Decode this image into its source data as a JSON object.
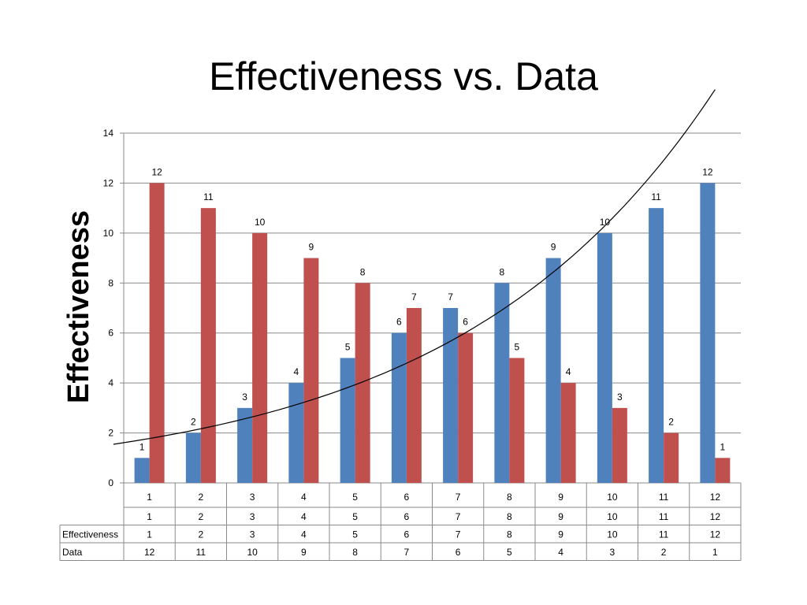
{
  "slide": {
    "title": "Effectiveness vs. Data"
  },
  "chart_data": {
    "type": "bar",
    "title": "Effectiveness vs. Data",
    "ylabel": "Effectiveness",
    "xlabel": "",
    "ylim": [
      0,
      14
    ],
    "yticks": [
      0,
      2,
      4,
      6,
      8,
      10,
      12,
      14
    ],
    "grid": true,
    "categories": [
      "1",
      "2",
      "3",
      "4",
      "5",
      "6",
      "7",
      "8",
      "9",
      "10",
      "11",
      "12"
    ],
    "header_row": [
      "1",
      "2",
      "3",
      "4",
      "5",
      "6",
      "7",
      "8",
      "9",
      "10",
      "11",
      "12"
    ],
    "series": [
      {
        "name": "Effectiveness",
        "color": "#4F81BD",
        "values": [
          1,
          2,
          3,
          4,
          5,
          6,
          7,
          8,
          9,
          10,
          11,
          12
        ]
      },
      {
        "name": "Data",
        "color": "#C0504D",
        "values": [
          12,
          11,
          10,
          9,
          8,
          7,
          6,
          5,
          4,
          3,
          2,
          1
        ]
      }
    ],
    "trendline": {
      "type": "exponential",
      "series": "Effectiveness",
      "color": "#000000"
    },
    "data_table": true
  }
}
